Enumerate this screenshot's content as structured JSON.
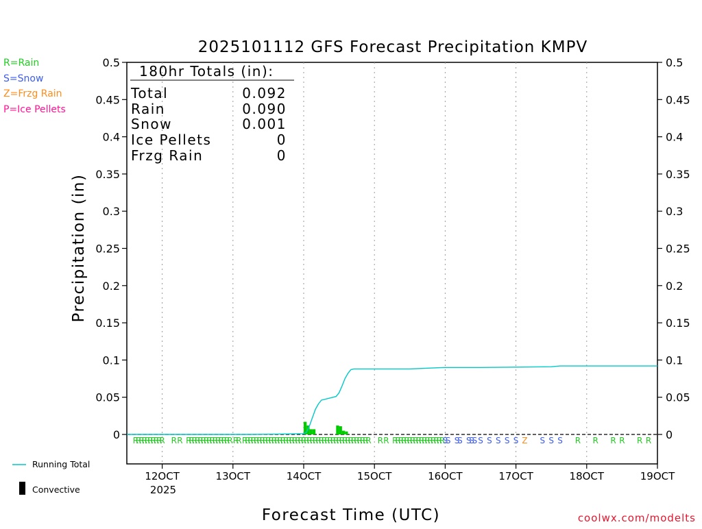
{
  "chart_data": {
    "type": "line",
    "title": "2025101112 GFS Forecast Precipitation KMPV",
    "ylabel": "Precipitation (in)",
    "xlabel": "Forecast Time (UTC)",
    "ylim": [
      0,
      0.5
    ],
    "y_ticks": [
      0,
      0.05,
      0.1,
      0.15,
      0.2,
      0.25,
      0.3,
      0.35,
      0.4,
      0.45,
      0.5
    ],
    "y_tick_labels": [
      "0",
      "0.05",
      "0.1",
      "0.15",
      "0.2",
      "0.25",
      "0.3",
      "0.35",
      "0.4",
      "0.45",
      "0.5"
    ],
    "x_unit": "forecast hours from 11OCT 12Z",
    "xlim": [
      0,
      180
    ],
    "x_ticks": [
      12,
      36,
      60,
      84,
      108,
      132,
      156,
      180
    ],
    "x_tick_labels": [
      "12OCT",
      "13OCT",
      "14OCT",
      "15OCT",
      "16OCT",
      "17OCT",
      "18OCT",
      "19OCT"
    ],
    "x_year_label": "2025",
    "grid": "vertical dotted at x ticks",
    "running_total": {
      "name": "Running Total",
      "color": "#00c8c8",
      "x": [
        0,
        42,
        60,
        61,
        62,
        63,
        64,
        65,
        66,
        70,
        71,
        72,
        73,
        74,
        75,
        76,
        77,
        78,
        82,
        96,
        102,
        108,
        120,
        144,
        147,
        180
      ],
      "y": [
        0,
        0,
        0.001,
        0.003,
        0.012,
        0.023,
        0.034,
        0.041,
        0.046,
        0.05,
        0.051,
        0.056,
        0.065,
        0.075,
        0.082,
        0.087,
        0.088,
        0.088,
        0.088,
        0.088,
        0.089,
        0.09,
        0.09,
        0.091,
        0.092,
        0.092
      ]
    },
    "convective": {
      "name": "Convective",
      "color": "#00cc00",
      "x": [
        60.5,
        61.5,
        62.5,
        63.5,
        71.5,
        72.5,
        73.5,
        74.5
      ],
      "y": [
        0.017,
        0.012,
        0.007,
        0.007,
        0.012,
        0.011,
        0.005,
        0.004
      ]
    },
    "ptype_markers": [
      {
        "x": 3,
        "t": "R"
      },
      {
        "x": 4,
        "t": "R"
      },
      {
        "x": 5,
        "t": "R"
      },
      {
        "x": 6,
        "t": "R"
      },
      {
        "x": 7,
        "t": "R"
      },
      {
        "x": 8,
        "t": "R"
      },
      {
        "x": 9,
        "t": "R"
      },
      {
        "x": 10,
        "t": "R"
      },
      {
        "x": 11,
        "t": "R"
      },
      {
        "x": 12,
        "t": "R"
      },
      {
        "x": 16,
        "t": "R"
      },
      {
        "x": 18,
        "t": "R"
      },
      {
        "x": 21,
        "t": "R"
      },
      {
        "x": 22,
        "t": "R"
      },
      {
        "x": 23,
        "t": "R"
      },
      {
        "x": 24,
        "t": "R"
      },
      {
        "x": 25,
        "t": "R"
      },
      {
        "x": 26,
        "t": "R"
      },
      {
        "x": 27,
        "t": "R"
      },
      {
        "x": 28,
        "t": "R"
      },
      {
        "x": 29,
        "t": "R"
      },
      {
        "x": 30,
        "t": "R"
      },
      {
        "x": 31,
        "t": "R"
      },
      {
        "x": 32,
        "t": "R"
      },
      {
        "x": 33,
        "t": "R"
      },
      {
        "x": 34,
        "t": "R"
      },
      {
        "x": 35,
        "t": "R"
      },
      {
        "x": 37,
        "t": "R"
      },
      {
        "x": 38,
        "t": "R"
      },
      {
        "x": 40,
        "t": "R"
      },
      {
        "x": 41,
        "t": "R"
      },
      {
        "x": 42,
        "t": "R"
      },
      {
        "x": 43,
        "t": "R"
      },
      {
        "x": 44,
        "t": "R"
      },
      {
        "x": 45,
        "t": "R"
      },
      {
        "x": 46,
        "t": "R"
      },
      {
        "x": 47,
        "t": "R"
      },
      {
        "x": 48,
        "t": "R"
      },
      {
        "x": 49,
        "t": "R"
      },
      {
        "x": 50,
        "t": "R"
      },
      {
        "x": 51,
        "t": "R"
      },
      {
        "x": 52,
        "t": "R"
      },
      {
        "x": 53,
        "t": "R"
      },
      {
        "x": 54,
        "t": "R"
      },
      {
        "x": 55,
        "t": "R"
      },
      {
        "x": 56,
        "t": "R"
      },
      {
        "x": 57,
        "t": "R"
      },
      {
        "x": 58,
        "t": "R"
      },
      {
        "x": 59,
        "t": "R"
      },
      {
        "x": 60,
        "t": "R"
      },
      {
        "x": 61,
        "t": "R"
      },
      {
        "x": 62,
        "t": "R"
      },
      {
        "x": 63,
        "t": "R"
      },
      {
        "x": 64,
        "t": "R"
      },
      {
        "x": 65,
        "t": "R"
      },
      {
        "x": 66,
        "t": "R"
      },
      {
        "x": 67,
        "t": "R"
      },
      {
        "x": 68,
        "t": "R"
      },
      {
        "x": 69,
        "t": "R"
      },
      {
        "x": 70,
        "t": "R"
      },
      {
        "x": 71,
        "t": "R"
      },
      {
        "x": 72,
        "t": "R"
      },
      {
        "x": 73,
        "t": "R"
      },
      {
        "x": 74,
        "t": "R"
      },
      {
        "x": 75,
        "t": "R"
      },
      {
        "x": 76,
        "t": "R"
      },
      {
        "x": 77,
        "t": "R"
      },
      {
        "x": 78,
        "t": "R"
      },
      {
        "x": 79,
        "t": "R"
      },
      {
        "x": 80,
        "t": "R"
      },
      {
        "x": 81,
        "t": "R"
      },
      {
        "x": 82,
        "t": "R"
      },
      {
        "x": 86,
        "t": "R"
      },
      {
        "x": 88,
        "t": "R"
      },
      {
        "x": 91,
        "t": "R"
      },
      {
        "x": 92,
        "t": "R"
      },
      {
        "x": 93,
        "t": "R"
      },
      {
        "x": 94,
        "t": "R"
      },
      {
        "x": 95,
        "t": "R"
      },
      {
        "x": 96,
        "t": "R"
      },
      {
        "x": 97,
        "t": "R"
      },
      {
        "x": 98,
        "t": "R"
      },
      {
        "x": 99,
        "t": "R"
      },
      {
        "x": 100,
        "t": "R"
      },
      {
        "x": 101,
        "t": "R"
      },
      {
        "x": 102,
        "t": "R"
      },
      {
        "x": 103,
        "t": "R"
      },
      {
        "x": 104,
        "t": "R"
      },
      {
        "x": 105,
        "t": "R"
      },
      {
        "x": 106,
        "t": "R"
      },
      {
        "x": 107,
        "t": "R"
      },
      {
        "x": 108,
        "t": "S"
      },
      {
        "x": 109,
        "t": "S"
      },
      {
        "x": 112,
        "t": "S"
      },
      {
        "x": 113,
        "t": "S"
      },
      {
        "x": 116,
        "t": "S"
      },
      {
        "x": 117,
        "t": "S"
      },
      {
        "x": 118,
        "t": "S"
      },
      {
        "x": 120,
        "t": "S"
      },
      {
        "x": 123,
        "t": "S"
      },
      {
        "x": 126,
        "t": "S"
      },
      {
        "x": 129,
        "t": "S"
      },
      {
        "x": 132,
        "t": "S"
      },
      {
        "x": 135,
        "t": "Z"
      },
      {
        "x": 141,
        "t": "S"
      },
      {
        "x": 144,
        "t": "S"
      },
      {
        "x": 147,
        "t": "S"
      },
      {
        "x": 153,
        "t": "R"
      },
      {
        "x": 159,
        "t": "R"
      },
      {
        "x": 165,
        "t": "R"
      },
      {
        "x": 168,
        "t": "R"
      },
      {
        "x": 174,
        "t": "R"
      },
      {
        "x": 177,
        "t": "R"
      }
    ],
    "totals_box": {
      "heading": "180hr Totals (in):",
      "rows": [
        {
          "label": "Total",
          "value": "0.092"
        },
        {
          "label": "Rain",
          "value": "0.090"
        },
        {
          "label": "Snow",
          "value": "0.001"
        },
        {
          "label": "Ice Pellets",
          "value": "0"
        },
        {
          "label": "Frzg Rain",
          "value": "0"
        }
      ]
    },
    "legend_left": [
      {
        "text": "R=Rain",
        "color": "#22cc22"
      },
      {
        "text": "S=Snow",
        "color": "#3a5cf0"
      },
      {
        "text": "Z=Frzg Rain",
        "color": "#ff8c1a"
      },
      {
        "text": "P=Ice Pellets",
        "color": "#ff1493"
      }
    ],
    "legend_bottom": [
      {
        "text": "Running Total"
      },
      {
        "text": "Convective"
      }
    ],
    "ptype_colors": {
      "R": "#22cc22",
      "S": "#3a5cf0",
      "Z": "#ff8c1a",
      "P": "#ff1493"
    },
    "credit": "coolwx.com/modelts",
    "credit_color": "#e8142d"
  }
}
